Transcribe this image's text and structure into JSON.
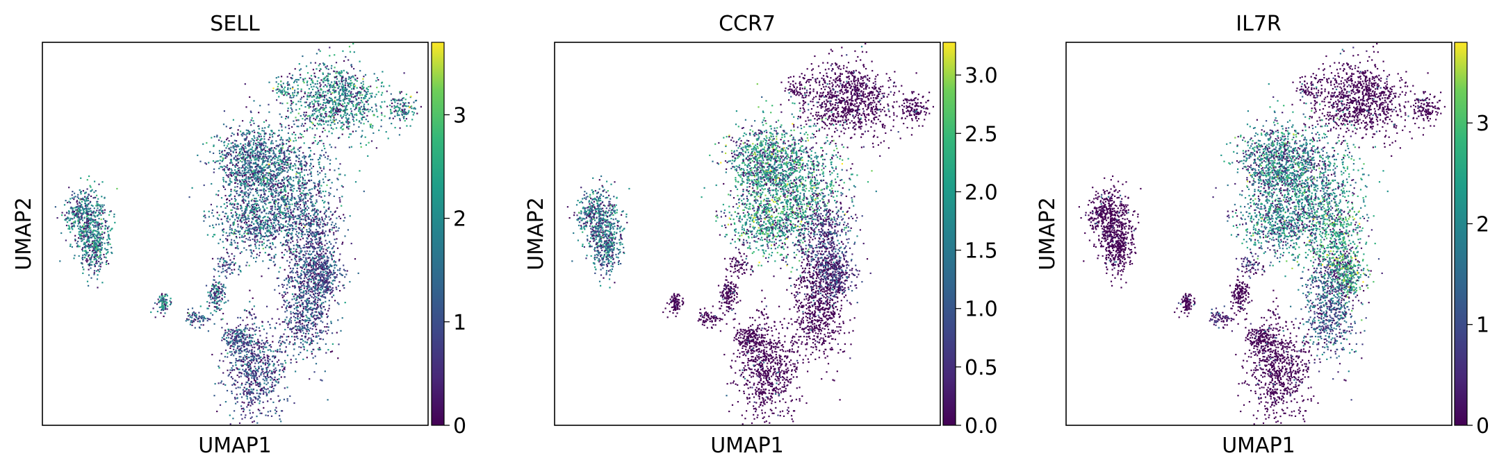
{
  "chart_data": [
    {
      "type": "scatter",
      "title": "SELL",
      "xlabel": "UMAP1",
      "ylabel": "UMAP2",
      "grid": false,
      "legend": "none",
      "colormap": "viridis",
      "colorbar": {
        "min": 0,
        "max": 3.7,
        "ticks": [
          0,
          1,
          2,
          3
        ],
        "tick_labels": [
          "0",
          "1",
          "2",
          "3"
        ]
      },
      "cluster_levels": {
        "left_island": 0.5,
        "top_right": 0.55,
        "center_upper": 0.45,
        "center_right": 0.28,
        "lower_mid": 0.3,
        "bottom": 0.3,
        "small_1": 0.55,
        "small_2": 0.45,
        "bridge": 0.35
      }
    },
    {
      "type": "scatter",
      "title": "CCR7",
      "xlabel": "UMAP1",
      "ylabel": "UMAP2",
      "grid": false,
      "legend": "none",
      "colormap": "viridis",
      "colorbar": {
        "min": 0,
        "max": 3.28,
        "ticks": [
          0,
          0.5,
          1,
          1.5,
          2,
          2.5,
          3
        ],
        "tick_labels": [
          "0.0",
          "0.5",
          "1.0",
          "1.5",
          "2.0",
          "2.5",
          "3.0"
        ]
      },
      "cluster_levels": {
        "left_island": 0.45,
        "top_right": 0.02,
        "center_upper": 0.62,
        "center_right": 0.2,
        "lower_mid": 0.08,
        "bottom": 0.02,
        "small_1": 0.05,
        "small_2": 0.05,
        "bridge": 0.05
      }
    },
    {
      "type": "scatter",
      "title": "IL7R",
      "xlabel": "UMAP1",
      "ylabel": "UMAP2",
      "grid": false,
      "legend": "none",
      "colormap": "viridis",
      "colorbar": {
        "min": 0,
        "max": 3.8,
        "ticks": [
          0,
          1,
          2,
          3
        ],
        "tick_labels": [
          "0",
          "1",
          "2",
          "3"
        ]
      },
      "cluster_levels": {
        "left_island": 0.02,
        "top_right": 0.02,
        "center_upper": 0.55,
        "center_right": 0.68,
        "lower_mid": 0.35,
        "bottom": 0.02,
        "small_1": 0.03,
        "small_2": 0.03,
        "bridge": 0.1
      }
    }
  ]
}
